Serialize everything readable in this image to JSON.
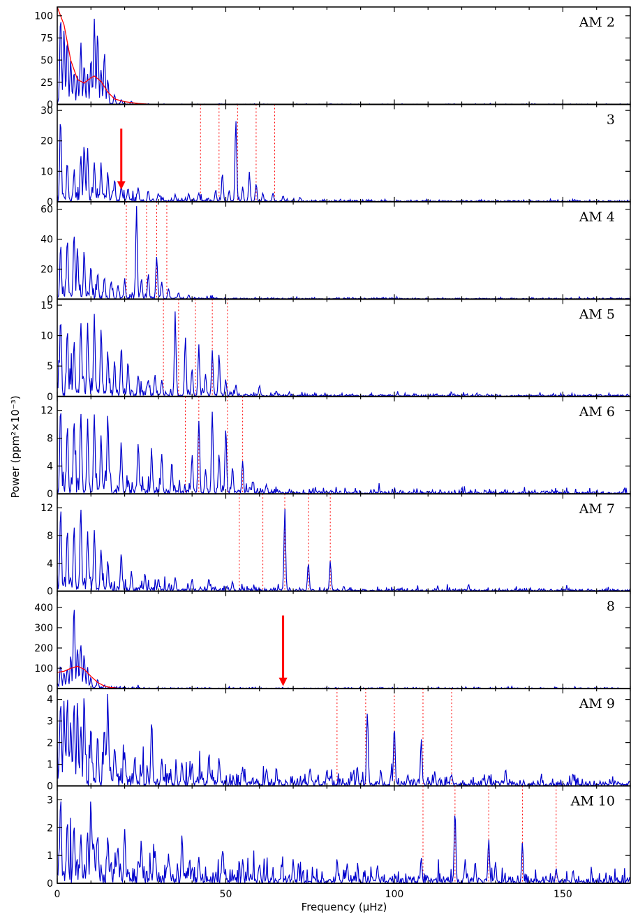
{
  "chart_data": {
    "type": "line",
    "xlabel": "Frequency (μHz)",
    "ylabel": "Power (ppm²×10⁻³)",
    "xlim": [
      0,
      170
    ],
    "x_ticks": [
      0,
      50,
      100,
      150
    ],
    "x_tick_labels": [
      "0",
      "50",
      "100",
      "150"
    ],
    "line_color": "#0000cc",
    "fit_color": "#ff0000",
    "marker_color": "#ff0000",
    "panels": [
      {
        "label": "AM 2",
        "ylim": [
          0,
          110
        ],
        "y_ticks": [
          0,
          25,
          50,
          75,
          100
        ],
        "y_tick_labels": [
          "0",
          "25",
          "50",
          "75",
          "100"
        ],
        "noise": {
          "max_x": 26,
          "base": 3,
          "floor": 0.3,
          "decay": 6,
          "seed": 2
        },
        "peaks": [
          [
            1,
            108
          ],
          [
            2,
            95
          ],
          [
            3,
            80
          ],
          [
            4,
            55
          ],
          [
            5,
            40
          ],
          [
            6,
            35
          ],
          [
            7,
            72
          ],
          [
            8,
            50
          ],
          [
            9,
            38
          ],
          [
            10,
            55
          ],
          [
            11,
            98
          ],
          [
            12,
            88
          ],
          [
            13,
            45
          ],
          [
            14,
            60
          ],
          [
            15,
            30
          ],
          [
            17,
            12
          ],
          [
            19,
            6
          ],
          [
            22,
            4
          ]
        ],
        "fit": [
          [
            0,
            110
          ],
          [
            2,
            90
          ],
          [
            4,
            50
          ],
          [
            6,
            28
          ],
          [
            8,
            24
          ],
          [
            10,
            30
          ],
          [
            11,
            32
          ],
          [
            13,
            26
          ],
          [
            15,
            14
          ],
          [
            17,
            6
          ],
          [
            20,
            3
          ],
          [
            24,
            1
          ],
          [
            28,
            0
          ]
        ],
        "modes": [],
        "arrow": null
      },
      {
        "label": "3",
        "ylim": [
          0,
          32
        ],
        "y_ticks": [
          0,
          10,
          20,
          30
        ],
        "y_tick_labels": [
          "0",
          "10",
          "20",
          "30"
        ],
        "noise": {
          "max_x": 170,
          "base": 2,
          "floor": 0.2,
          "decay": 20,
          "seed": 3
        },
        "peaks": [
          [
            1,
            30
          ],
          [
            3,
            14
          ],
          [
            5,
            11
          ],
          [
            7,
            16
          ],
          [
            8,
            21
          ],
          [
            9,
            18
          ],
          [
            11,
            14
          ],
          [
            13,
            13
          ],
          [
            15,
            11
          ],
          [
            17,
            8
          ],
          [
            19,
            6
          ],
          [
            21,
            5
          ],
          [
            24,
            5
          ],
          [
            27,
            4
          ],
          [
            30,
            3
          ],
          [
            35,
            2.5
          ],
          [
            39,
            3
          ],
          [
            42,
            3
          ],
          [
            47,
            4
          ],
          [
            49,
            10
          ],
          [
            51,
            4
          ],
          [
            53,
            29
          ],
          [
            55,
            5
          ],
          [
            57,
            10
          ],
          [
            59,
            6.5
          ],
          [
            61,
            3
          ],
          [
            64,
            3
          ],
          [
            67,
            2
          ],
          [
            72,
            1.5
          ]
        ],
        "fit": null,
        "modes": [
          42.5,
          48,
          53.5,
          59,
          64.5
        ],
        "arrow": {
          "x": 19,
          "y_top": 24,
          "y_bottom": 4
        }
      },
      {
        "label": "AM 4",
        "ylim": [
          0,
          65
        ],
        "y_ticks": [
          0,
          20,
          40,
          60
        ],
        "y_tick_labels": [
          "0",
          "20",
          "40",
          "60"
        ],
        "noise": {
          "max_x": 170,
          "base": 5,
          "floor": 0.3,
          "decay": 14,
          "seed": 4
        },
        "peaks": [
          [
            1,
            38
          ],
          [
            3,
            45
          ],
          [
            5,
            48
          ],
          [
            6,
            40
          ],
          [
            8,
            35
          ],
          [
            10,
            25
          ],
          [
            12,
            18
          ],
          [
            14,
            15
          ],
          [
            16,
            12
          ],
          [
            18,
            10
          ],
          [
            20,
            14
          ],
          [
            23.5,
            63
          ],
          [
            25,
            15
          ],
          [
            27,
            18
          ],
          [
            29.5,
            33
          ],
          [
            31,
            12
          ],
          [
            33,
            8
          ],
          [
            36,
            5
          ],
          [
            39,
            3
          ]
        ],
        "fit": null,
        "modes": [
          20.5,
          26.5,
          29.5,
          32.5
        ],
        "arrow": null
      },
      {
        "label": "AM 5",
        "ylim": [
          0,
          16
        ],
        "y_ticks": [
          0,
          5,
          10,
          15
        ],
        "y_tick_labels": [
          "0",
          "5",
          "10",
          "15"
        ],
        "noise": {
          "max_x": 170,
          "base": 1.6,
          "floor": 0.15,
          "decay": 22,
          "seed": 5
        },
        "peaks": [
          [
            1,
            15
          ],
          [
            3,
            12
          ],
          [
            5,
            10
          ],
          [
            7,
            14
          ],
          [
            9,
            13
          ],
          [
            11,
            15
          ],
          [
            13,
            12
          ],
          [
            15,
            8
          ],
          [
            17,
            6
          ],
          [
            19,
            9
          ],
          [
            21,
            6
          ],
          [
            24,
            4
          ],
          [
            27,
            3
          ],
          [
            29,
            4
          ],
          [
            31,
            3
          ],
          [
            35,
            14
          ],
          [
            38,
            10
          ],
          [
            40,
            5
          ],
          [
            42,
            9
          ],
          [
            44,
            4
          ],
          [
            46,
            8
          ],
          [
            48,
            7.5
          ],
          [
            50,
            3
          ],
          [
            53,
            2
          ],
          [
            60,
            2
          ],
          [
            65,
            1
          ]
        ],
        "fit": null,
        "modes": [
          31.5,
          36,
          41,
          46,
          50.5
        ],
        "arrow": null
      },
      {
        "label": "AM 6",
        "ylim": [
          0,
          14
        ],
        "y_ticks": [
          0,
          4,
          8,
          12
        ],
        "y_tick_labels": [
          "0",
          "4",
          "8",
          "12"
        ],
        "noise": {
          "max_x": 170,
          "base": 1.4,
          "floor": 0.2,
          "decay": 26,
          "seed": 6
        },
        "peaks": [
          [
            1,
            13
          ],
          [
            3,
            10
          ],
          [
            5,
            12
          ],
          [
            7,
            13
          ],
          [
            9,
            11
          ],
          [
            11,
            13
          ],
          [
            13,
            9
          ],
          [
            15,
            13
          ],
          [
            19,
            8
          ],
          [
            24,
            8
          ],
          [
            28,
            7
          ],
          [
            31,
            6
          ],
          [
            34,
            5
          ],
          [
            40,
            6
          ],
          [
            42,
            12
          ],
          [
            44,
            4
          ],
          [
            46,
            13
          ],
          [
            48,
            6
          ],
          [
            50,
            10
          ],
          [
            52,
            4
          ],
          [
            55,
            5
          ],
          [
            58,
            2
          ],
          [
            62,
            1.5
          ]
        ],
        "fit": null,
        "modes": [
          38,
          42,
          50.5,
          55
        ],
        "arrow": null
      },
      {
        "label": "AM 7",
        "ylim": [
          0,
          14
        ],
        "y_ticks": [
          0,
          4,
          8,
          12
        ],
        "y_tick_labels": [
          "0",
          "4",
          "8",
          "12"
        ],
        "noise": {
          "max_x": 170,
          "base": 1.1,
          "floor": 0.15,
          "decay": 22,
          "seed": 7
        },
        "peaks": [
          [
            1,
            13
          ],
          [
            3,
            10
          ],
          [
            5,
            11
          ],
          [
            7,
            13
          ],
          [
            9,
            9
          ],
          [
            11,
            9
          ],
          [
            13,
            7
          ],
          [
            15,
            5
          ],
          [
            19,
            6
          ],
          [
            22,
            3
          ],
          [
            26,
            2.5
          ],
          [
            30,
            2
          ],
          [
            35,
            2
          ],
          [
            40,
            2
          ],
          [
            45,
            2
          ],
          [
            52,
            1.5
          ],
          [
            67.5,
            12
          ],
          [
            74.5,
            4.5
          ],
          [
            81,
            4.5
          ],
          [
            85,
            0.8
          ],
          [
            122,
            1
          ]
        ],
        "fit": null,
        "modes": [
          54,
          61,
          67.5,
          74.5,
          81
        ],
        "arrow": null
      },
      {
        "label": "8",
        "ylim": [
          0,
          480
        ],
        "y_ticks": [
          0,
          100,
          200,
          300,
          400
        ],
        "y_tick_labels": [
          "0",
          "100",
          "200",
          "300",
          "400"
        ],
        "noise": {
          "max_x": 25,
          "base": 50,
          "floor": 3,
          "decay": 5,
          "seed": 8
        },
        "peaks": [
          [
            1,
            130
          ],
          [
            2,
            90
          ],
          [
            3,
            110
          ],
          [
            4,
            160
          ],
          [
            5,
            440
          ],
          [
            6,
            230
          ],
          [
            7,
            250
          ],
          [
            8,
            180
          ],
          [
            9,
            110
          ],
          [
            10,
            60
          ],
          [
            12,
            50
          ],
          [
            14,
            20
          ],
          [
            17,
            8
          ]
        ],
        "fit": [
          [
            0,
            80
          ],
          [
            2,
            85
          ],
          [
            4,
            100
          ],
          [
            6,
            110
          ],
          [
            8,
            95
          ],
          [
            10,
            60
          ],
          [
            12,
            30
          ],
          [
            14,
            12
          ],
          [
            16,
            5
          ],
          [
            18,
            2
          ],
          [
            22,
            0
          ]
        ],
        "modes": [],
        "arrow": {
          "x": 67,
          "y_top": 360,
          "y_bottom": 12
        }
      },
      {
        "label": "AM 9",
        "ylim": [
          0,
          4.5
        ],
        "y_ticks": [
          0,
          1,
          2,
          3,
          4
        ],
        "y_tick_labels": [
          "0",
          "1",
          "2",
          "3",
          "4"
        ],
        "noise": {
          "max_x": 170,
          "base": 0.55,
          "floor": 0.12,
          "decay": 40,
          "seed": 9
        },
        "peaks": [
          [
            1,
            4.3
          ],
          [
            2,
            4
          ],
          [
            3,
            4.3
          ],
          [
            4,
            3
          ],
          [
            5,
            4.3
          ],
          [
            6,
            4
          ],
          [
            7,
            3.2
          ],
          [
            8,
            4.3
          ],
          [
            10,
            3
          ],
          [
            12,
            2.6
          ],
          [
            14,
            3
          ],
          [
            15,
            4.3
          ],
          [
            17,
            2
          ],
          [
            20,
            1.8
          ],
          [
            23,
            1.5
          ],
          [
            28,
            3.3
          ],
          [
            31,
            1.4
          ],
          [
            37,
            1.2
          ],
          [
            40,
            1.1
          ],
          [
            45,
            1.6
          ],
          [
            48,
            1.4
          ],
          [
            55,
            1
          ],
          [
            62,
            0.8
          ],
          [
            75,
            0.9
          ],
          [
            80,
            0.8
          ],
          [
            89,
            1
          ],
          [
            92,
            3.8
          ],
          [
            96,
            0.8
          ],
          [
            100,
            3.2
          ],
          [
            104,
            0.6
          ],
          [
            108,
            2.4
          ],
          [
            112,
            0.7
          ],
          [
            117,
            0.6
          ],
          [
            128,
            0.5
          ],
          [
            133,
            0.8
          ],
          [
            153,
            0.6
          ]
        ],
        "fit": null,
        "modes": [
          83,
          91.5,
          100,
          108.5,
          117
        ],
        "arrow": null
      },
      {
        "label": "AM 10",
        "ylim": [
          0,
          3.5
        ],
        "y_ticks": [
          0,
          1,
          2,
          3
        ],
        "y_tick_labels": [
          "0",
          "1",
          "2",
          "3"
        ],
        "noise": {
          "max_x": 170,
          "base": 0.45,
          "floor": 0.12,
          "decay": 40,
          "seed": 10
        },
        "peaks": [
          [
            1,
            3.4
          ],
          [
            3,
            2.5
          ],
          [
            5,
            2.3
          ],
          [
            7,
            2
          ],
          [
            9,
            2
          ],
          [
            10,
            3.2
          ],
          [
            12,
            2
          ],
          [
            15,
            1.8
          ],
          [
            18,
            1.5
          ],
          [
            20,
            2.1
          ],
          [
            25,
            1.3
          ],
          [
            29,
            1.2
          ],
          [
            33,
            1.1
          ],
          [
            37,
            1.8
          ],
          [
            42,
            1
          ],
          [
            49,
            1.2
          ],
          [
            55,
            0.9
          ],
          [
            60,
            0.8
          ],
          [
            70,
            0.9
          ],
          [
            83,
            0.9
          ],
          [
            86,
            0.8
          ],
          [
            95,
            0.7
          ],
          [
            108,
            1
          ],
          [
            118,
            3
          ],
          [
            121,
            0.9
          ],
          [
            124,
            0.8
          ],
          [
            128,
            1.7
          ],
          [
            130,
            0.8
          ],
          [
            138,
            1.5
          ],
          [
            148,
            0.6
          ],
          [
            153,
            0.5
          ]
        ],
        "fit": null,
        "modes": [
          108.5,
          118,
          128,
          138,
          148
        ],
        "arrow": null
      }
    ]
  }
}
